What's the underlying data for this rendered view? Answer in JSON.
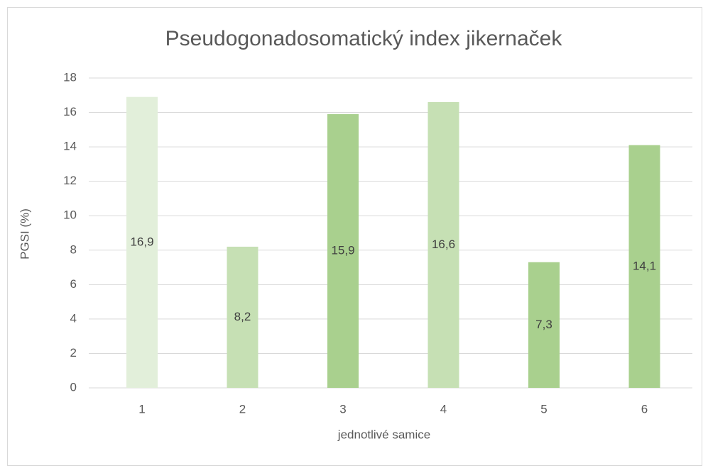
{
  "chart_data": {
    "type": "bar",
    "title": "Pseudogonadosomatický index jikernaček",
    "x_label": "jednotlivé samice",
    "y_label": "PGSI (%)",
    "categories": [
      "1",
      "2",
      "3",
      "4",
      "5",
      "6"
    ],
    "values": [
      16.9,
      8.2,
      15.9,
      16.6,
      7.3,
      14.1
    ],
    "value_labels": [
      "16,9",
      "8,2",
      "15,9",
      "16,6",
      "7,3",
      "14,1"
    ],
    "colors": [
      "#e2efda",
      "#c6e0b4",
      "#a9d08e",
      "#c6e0b4",
      "#a9d08e",
      "#a9d08e"
    ],
    "ylim": [
      0,
      18
    ],
    "yticks": [
      0,
      2,
      4,
      6,
      8,
      10,
      12,
      14,
      16,
      18
    ],
    "grid": true
  }
}
